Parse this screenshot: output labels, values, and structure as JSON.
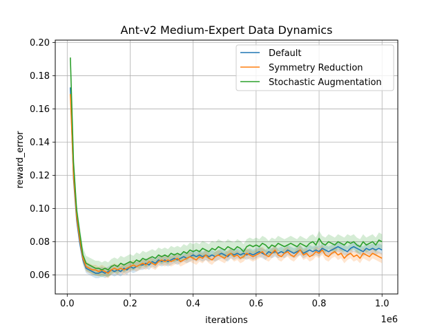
{
  "chart_data": {
    "type": "line",
    "title": "Ant-v2 Medium-Expert Data Dynamics",
    "xlabel": "iterations",
    "ylabel": "reward_error",
    "x_offset_label": "1e6",
    "xlim": [
      -0.038,
      1.05
    ],
    "ylim": [
      0.0485,
      0.2015
    ],
    "xticks": [
      0.0,
      0.2,
      0.4,
      0.6,
      0.8,
      1.0
    ],
    "xtick_labels": [
      "0.0",
      "0.2",
      "0.4",
      "0.6",
      "0.8",
      "1.0"
    ],
    "yticks": [
      0.06,
      0.08,
      0.1,
      0.12,
      0.14,
      0.16,
      0.18,
      0.2
    ],
    "ytick_labels": [
      "0.06",
      "0.08",
      "0.10",
      "0.12",
      "0.14",
      "0.16",
      "0.18",
      "0.20"
    ],
    "grid": true,
    "legend_position": "top-right",
    "x": [
      0.01,
      0.02,
      0.03,
      0.04,
      0.05,
      0.06,
      0.07,
      0.08,
      0.09,
      0.1,
      0.11,
      0.12,
      0.13,
      0.14,
      0.15,
      0.16,
      0.17,
      0.18,
      0.19,
      0.2,
      0.21,
      0.22,
      0.23,
      0.24,
      0.25,
      0.26,
      0.27,
      0.28,
      0.29,
      0.3,
      0.31,
      0.32,
      0.33,
      0.34,
      0.35,
      0.36,
      0.37,
      0.38,
      0.39,
      0.4,
      0.41,
      0.42,
      0.43,
      0.44,
      0.45,
      0.46,
      0.47,
      0.48,
      0.49,
      0.5,
      0.51,
      0.52,
      0.53,
      0.54,
      0.55,
      0.56,
      0.57,
      0.58,
      0.59,
      0.6,
      0.61,
      0.62,
      0.63,
      0.64,
      0.65,
      0.66,
      0.67,
      0.68,
      0.69,
      0.7,
      0.71,
      0.72,
      0.73,
      0.74,
      0.75,
      0.76,
      0.77,
      0.78,
      0.79,
      0.8,
      0.81,
      0.82,
      0.83,
      0.84,
      0.85,
      0.86,
      0.87,
      0.88,
      0.89,
      0.9,
      0.91,
      0.92,
      0.93,
      0.94,
      0.95,
      0.96,
      0.97,
      0.98,
      0.99,
      1.0
    ],
    "series": [
      {
        "name": "Default",
        "color": "#1f77b4",
        "band": 0.003,
        "values": [
          0.173,
          0.118,
          0.093,
          0.079,
          0.069,
          0.064,
          0.063,
          0.062,
          0.061,
          0.061,
          0.062,
          0.061,
          0.062,
          0.063,
          0.062,
          0.063,
          0.062,
          0.064,
          0.063,
          0.065,
          0.064,
          0.065,
          0.066,
          0.066,
          0.067,
          0.066,
          0.068,
          0.067,
          0.069,
          0.068,
          0.069,
          0.068,
          0.069,
          0.07,
          0.069,
          0.07,
          0.071,
          0.07,
          0.071,
          0.072,
          0.071,
          0.072,
          0.071,
          0.072,
          0.071,
          0.072,
          0.071,
          0.072,
          0.073,
          0.072,
          0.071,
          0.073,
          0.072,
          0.073,
          0.072,
          0.073,
          0.072,
          0.073,
          0.072,
          0.073,
          0.074,
          0.073,
          0.072,
          0.074,
          0.073,
          0.074,
          0.073,
          0.074,
          0.073,
          0.075,
          0.074,
          0.073,
          0.074,
          0.075,
          0.073,
          0.074,
          0.075,
          0.074,
          0.075,
          0.074,
          0.076,
          0.075,
          0.074,
          0.075,
          0.076,
          0.077,
          0.076,
          0.075,
          0.074,
          0.076,
          0.077,
          0.076,
          0.075,
          0.074,
          0.076,
          0.075,
          0.076,
          0.075,
          0.076,
          0.075
        ]
      },
      {
        "name": "Symmetry Reduction",
        "color": "#ff7f0e",
        "band": 0.003,
        "values": [
          0.169,
          0.12,
          0.095,
          0.081,
          0.07,
          0.065,
          0.064,
          0.063,
          0.063,
          0.062,
          0.063,
          0.062,
          0.061,
          0.063,
          0.064,
          0.063,
          0.064,
          0.063,
          0.064,
          0.065,
          0.066,
          0.065,
          0.066,
          0.067,
          0.066,
          0.068,
          0.067,
          0.066,
          0.068,
          0.069,
          0.068,
          0.069,
          0.068,
          0.069,
          0.07,
          0.068,
          0.069,
          0.07,
          0.071,
          0.07,
          0.069,
          0.071,
          0.07,
          0.072,
          0.07,
          0.069,
          0.071,
          0.072,
          0.071,
          0.07,
          0.072,
          0.073,
          0.071,
          0.072,
          0.07,
          0.071,
          0.073,
          0.072,
          0.071,
          0.072,
          0.073,
          0.074,
          0.072,
          0.071,
          0.073,
          0.075,
          0.072,
          0.071,
          0.073,
          0.074,
          0.072,
          0.071,
          0.073,
          0.075,
          0.072,
          0.073,
          0.071,
          0.072,
          0.074,
          0.073,
          0.075,
          0.072,
          0.071,
          0.073,
          0.074,
          0.072,
          0.073,
          0.07,
          0.072,
          0.073,
          0.071,
          0.072,
          0.07,
          0.073,
          0.072,
          0.071,
          0.073,
          0.072,
          0.071,
          0.07
        ]
      },
      {
        "name": "Stochastic Augmentation",
        "color": "#2ca02c",
        "band": 0.0045,
        "values": [
          0.191,
          0.128,
          0.099,
          0.085,
          0.072,
          0.067,
          0.066,
          0.065,
          0.064,
          0.064,
          0.063,
          0.064,
          0.063,
          0.065,
          0.066,
          0.065,
          0.067,
          0.066,
          0.067,
          0.068,
          0.067,
          0.069,
          0.068,
          0.07,
          0.069,
          0.07,
          0.071,
          0.07,
          0.072,
          0.071,
          0.072,
          0.071,
          0.073,
          0.072,
          0.073,
          0.072,
          0.074,
          0.073,
          0.075,
          0.074,
          0.075,
          0.074,
          0.076,
          0.075,
          0.074,
          0.076,
          0.075,
          0.077,
          0.076,
          0.075,
          0.077,
          0.076,
          0.075,
          0.077,
          0.076,
          0.074,
          0.077,
          0.078,
          0.077,
          0.078,
          0.077,
          0.079,
          0.078,
          0.076,
          0.078,
          0.077,
          0.079,
          0.078,
          0.077,
          0.078,
          0.079,
          0.078,
          0.077,
          0.079,
          0.078,
          0.077,
          0.079,
          0.08,
          0.078,
          0.082,
          0.079,
          0.078,
          0.08,
          0.079,
          0.078,
          0.08,
          0.079,
          0.078,
          0.08,
          0.079,
          0.08,
          0.078,
          0.077,
          0.08,
          0.078,
          0.079,
          0.08,
          0.078,
          0.081,
          0.08
        ]
      }
    ]
  }
}
